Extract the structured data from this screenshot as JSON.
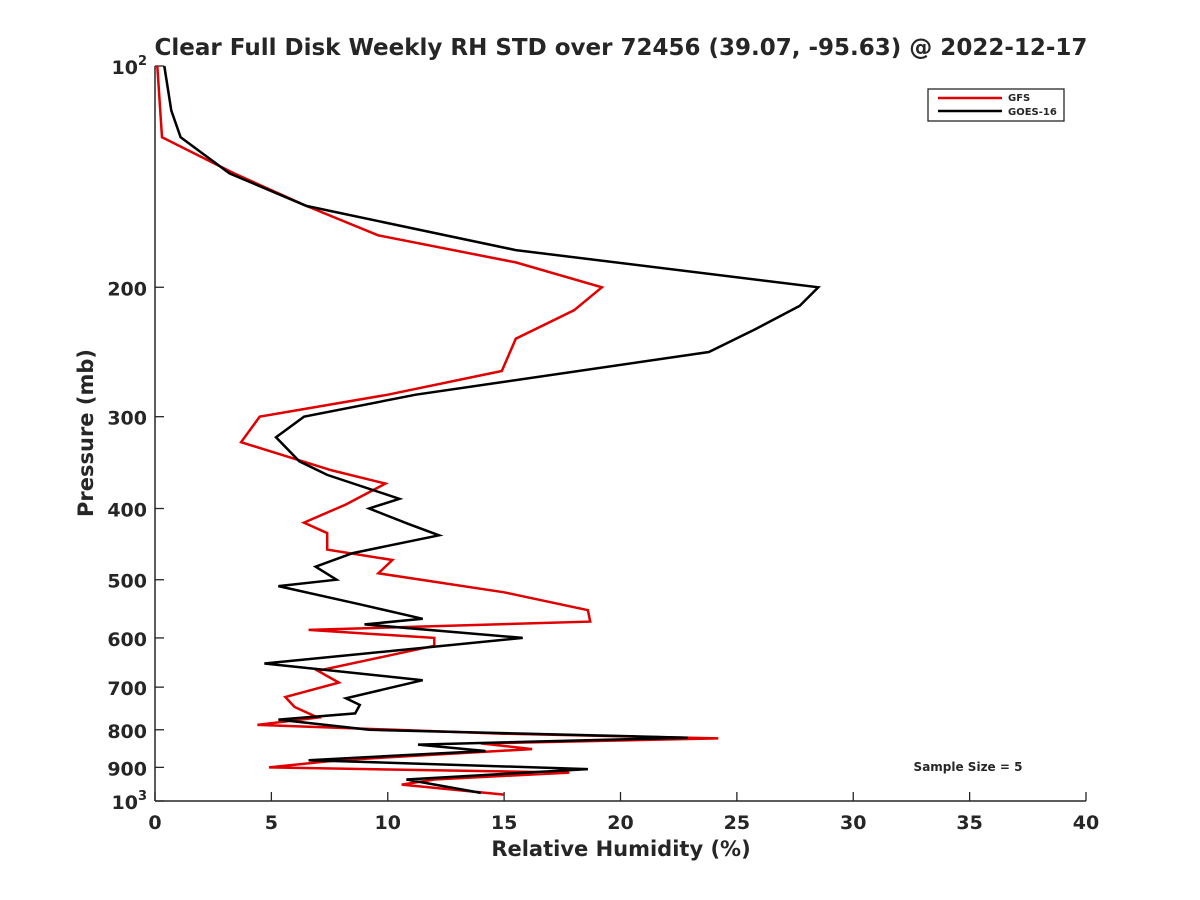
{
  "chart_data": {
    "type": "line",
    "title": "Clear Full Disk Weekly RH STD over 72456 (39.07, -95.63) @ 2022-12-17",
    "xlabel": "Relative Humidity (%)",
    "ylabel": "Pressure (mb)",
    "xlim": [
      0,
      40
    ],
    "ylim": [
      100,
      1000
    ],
    "yscale": "log",
    "y_reversed": true,
    "grid": false,
    "x_ticks": [
      0,
      5,
      10,
      15,
      20,
      25,
      30,
      35,
      40
    ],
    "y_ticks": [
      100,
      200,
      300,
      400,
      500,
      600,
      700,
      800,
      900,
      1000
    ],
    "y_tick_labels": [
      {
        "base": "10",
        "exp": "2"
      },
      {
        "base": "200"
      },
      {
        "base": "300"
      },
      {
        "base": "400"
      },
      {
        "base": "500"
      },
      {
        "base": "600"
      },
      {
        "base": "700"
      },
      {
        "base": "800"
      },
      {
        "base": "900"
      },
      {
        "base": "10",
        "exp": "3"
      }
    ],
    "legend_position": "top-right",
    "annotation": "Sample Size = 5",
    "series": [
      {
        "name": "GFS",
        "color": "#e00000",
        "points": [
          [
            0.1,
            100
          ],
          [
            0.3,
            125
          ],
          [
            3.4,
            140
          ],
          [
            6.5,
            155
          ],
          [
            9.6,
            170
          ],
          [
            15.5,
            185
          ],
          [
            19.2,
            200
          ],
          [
            18.0,
            215
          ],
          [
            15.5,
            235
          ],
          [
            14.9,
            260
          ],
          [
            10.0,
            280
          ],
          [
            4.5,
            300
          ],
          [
            3.7,
            325
          ],
          [
            7.6,
            355
          ],
          [
            9.9,
            370
          ],
          [
            8.2,
            395
          ],
          [
            6.4,
            418
          ],
          [
            7.4,
            432
          ],
          [
            7.4,
            455
          ],
          [
            10.2,
            470
          ],
          [
            9.6,
            490
          ],
          [
            15.0,
            520
          ],
          [
            18.6,
            550
          ],
          [
            18.7,
            570
          ],
          [
            6.6,
            585
          ],
          [
            12.0,
            600
          ],
          [
            12.0,
            615
          ],
          [
            7.0,
            665
          ],
          [
            7.9,
            690
          ],
          [
            5.6,
            722
          ],
          [
            6.0,
            745
          ],
          [
            7.0,
            770
          ],
          [
            4.4,
            788
          ],
          [
            15.0,
            810
          ],
          [
            24.2,
            822
          ],
          [
            14.0,
            835
          ],
          [
            16.2,
            850
          ],
          [
            7.9,
            880
          ],
          [
            4.9,
            900
          ],
          [
            17.8,
            915
          ],
          [
            12.0,
            935
          ],
          [
            10.6,
            950
          ],
          [
            15.0,
            980
          ]
        ]
      },
      {
        "name": "GOES-16",
        "color": "#000000",
        "points": [
          [
            0.4,
            100
          ],
          [
            0.7,
            115
          ],
          [
            1.1,
            125
          ],
          [
            3.2,
            140
          ],
          [
            6.5,
            155
          ],
          [
            15.5,
            178
          ],
          [
            28.5,
            200
          ],
          [
            27.7,
            212
          ],
          [
            25.8,
            228
          ],
          [
            23.8,
            245
          ],
          [
            11.2,
            280
          ],
          [
            6.4,
            300
          ],
          [
            5.2,
            320
          ],
          [
            6.2,
            345
          ],
          [
            7.4,
            360
          ],
          [
            10.5,
            388
          ],
          [
            9.2,
            400
          ],
          [
            10.9,
            420
          ],
          [
            12.2,
            435
          ],
          [
            8.5,
            460
          ],
          [
            6.9,
            480
          ],
          [
            7.8,
            500
          ],
          [
            5.3,
            510
          ],
          [
            8.8,
            540
          ],
          [
            11.5,
            565
          ],
          [
            9.0,
            575
          ],
          [
            15.8,
            600
          ],
          [
            4.7,
            650
          ],
          [
            11.5,
            685
          ],
          [
            8.2,
            725
          ],
          [
            8.8,
            740
          ],
          [
            8.6,
            760
          ],
          [
            5.3,
            775
          ],
          [
            9.2,
            800
          ],
          [
            22.9,
            820
          ],
          [
            11.3,
            838
          ],
          [
            14.2,
            855
          ],
          [
            6.6,
            880
          ],
          [
            18.6,
            905
          ],
          [
            10.8,
            935
          ],
          [
            14.0,
            975
          ]
        ]
      }
    ]
  }
}
